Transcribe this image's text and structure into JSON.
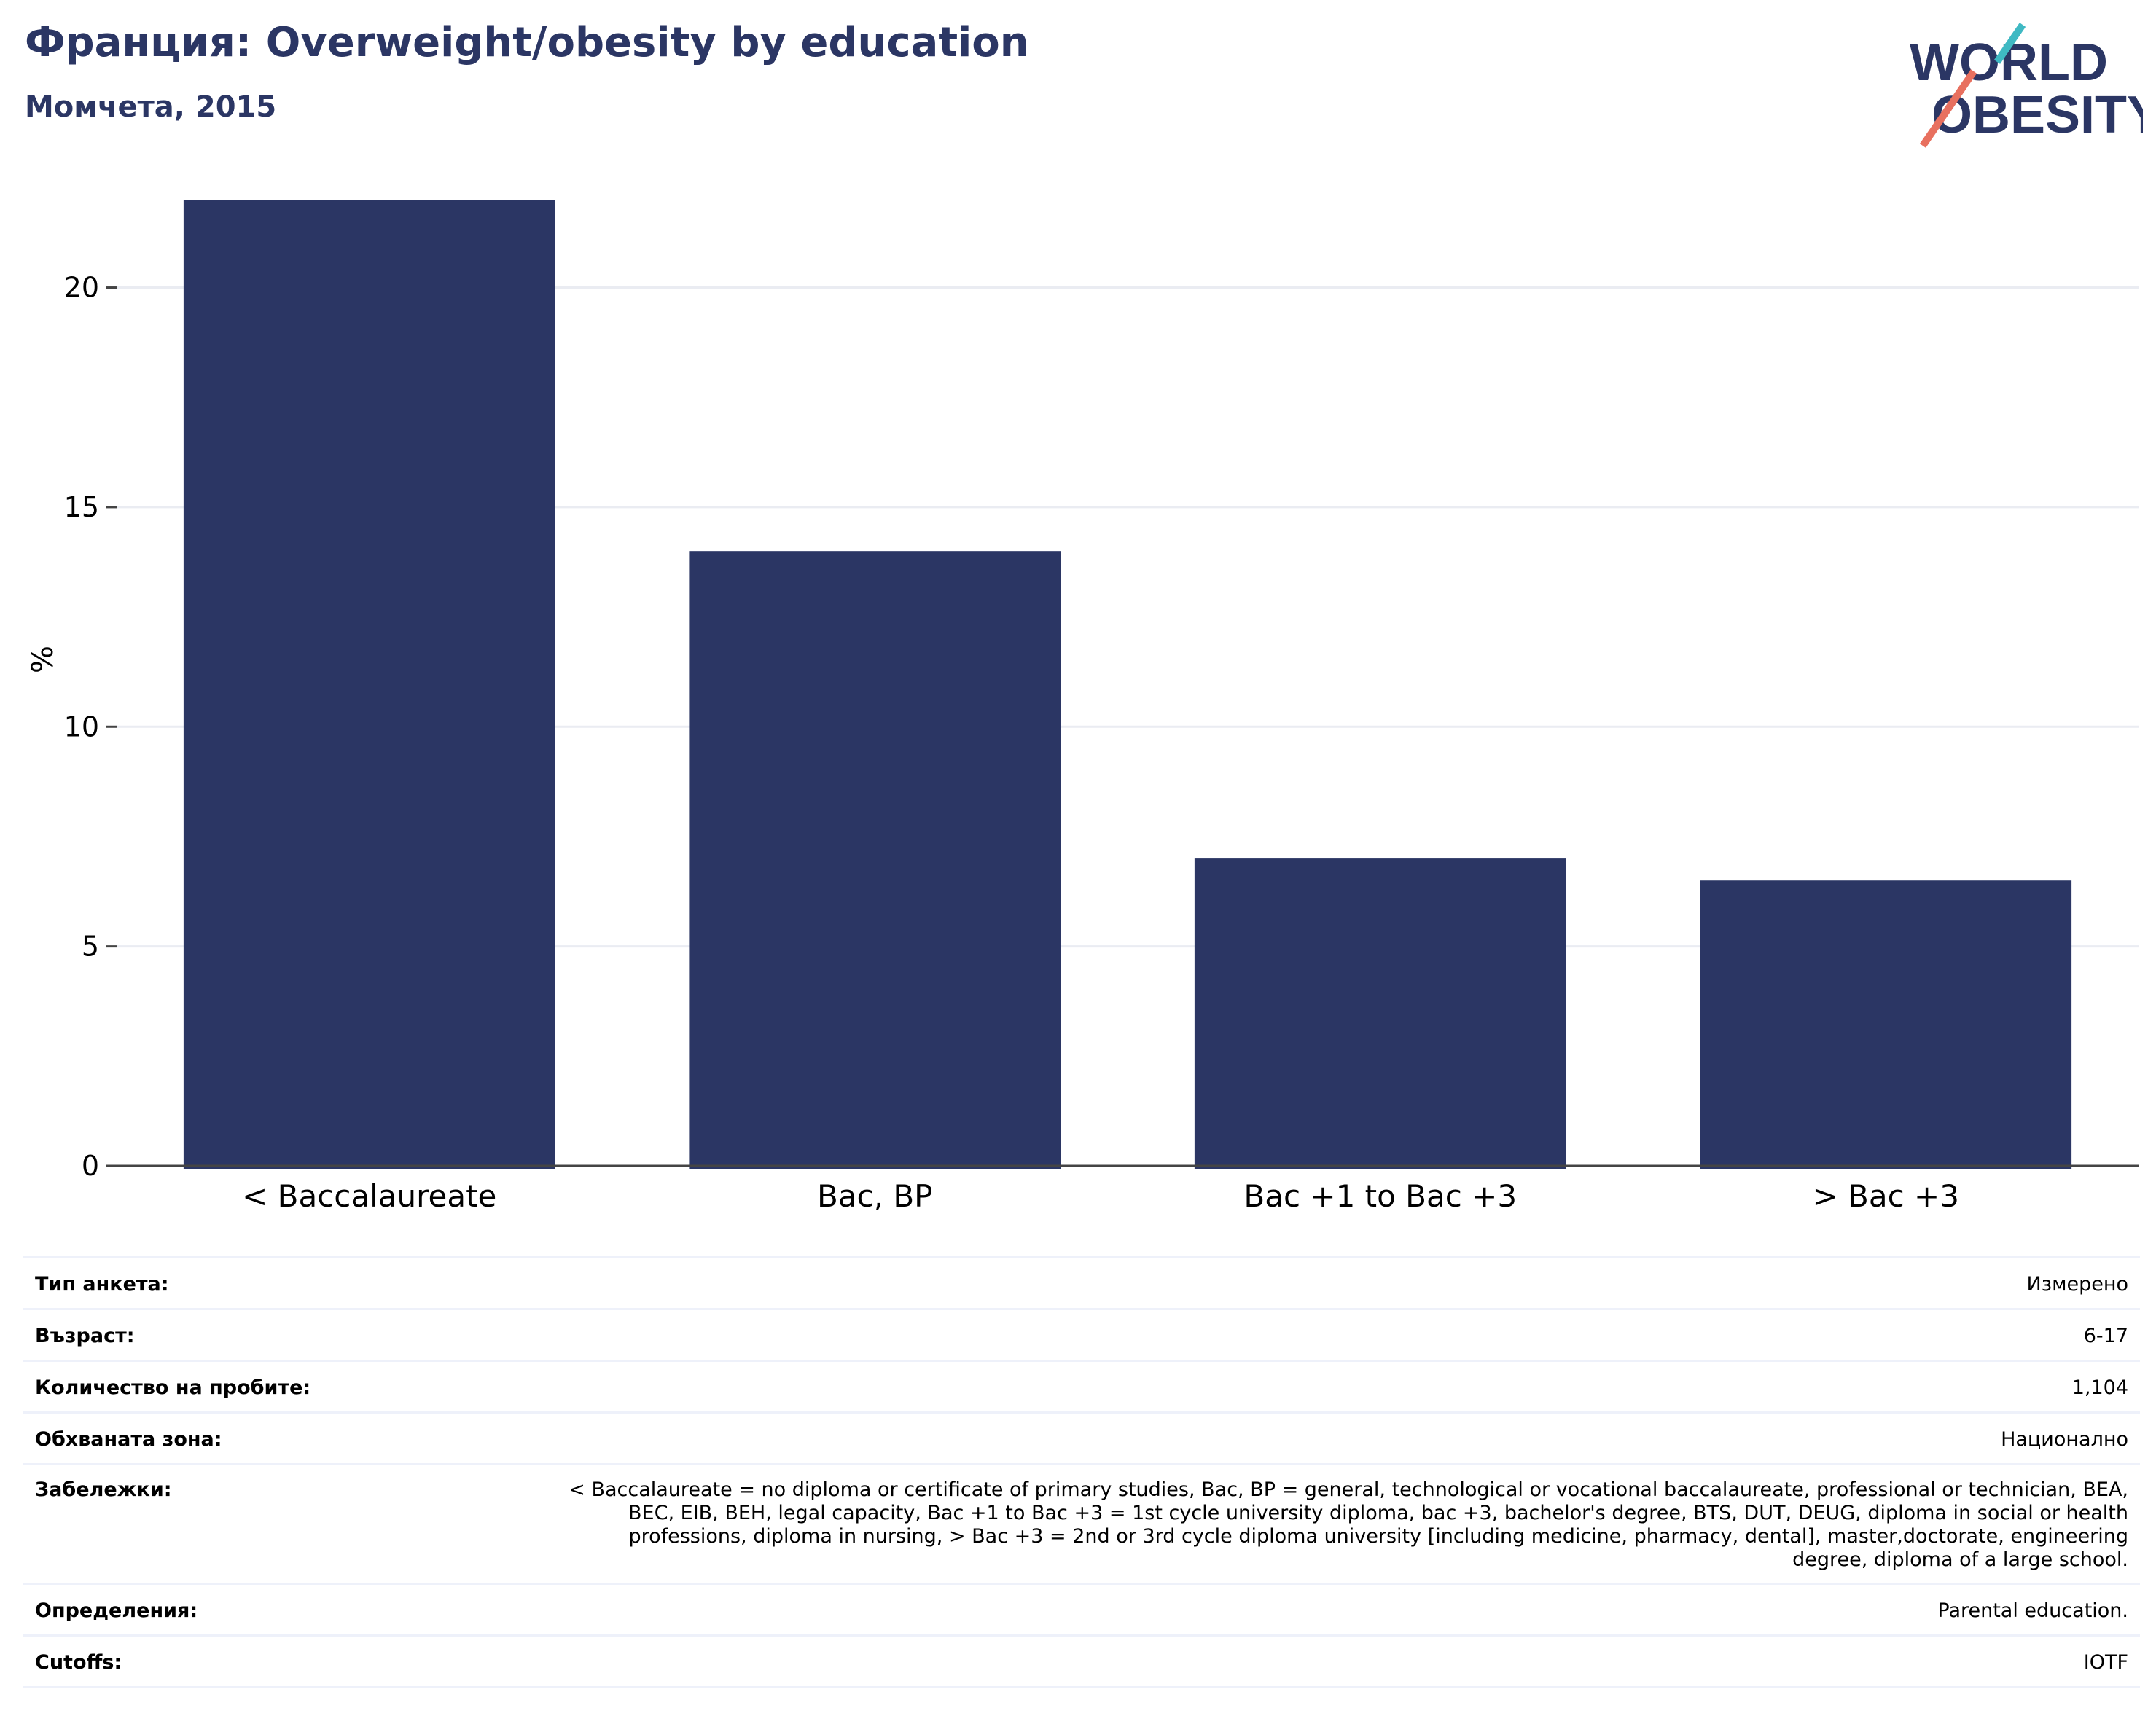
{
  "header": {
    "title": "Франция: Overweight/obesity by education",
    "subtitle": "Момчета, 2015"
  },
  "logo": {
    "line1": "WORLD",
    "line2": "OBESITY"
  },
  "colors": {
    "bar": "#2b3664",
    "title": "#2b3664",
    "grid": "#eaecf2",
    "logo_teal": "#3fb9c3",
    "logo_red": "#e8705f"
  },
  "chart_data": {
    "type": "bar",
    "categories": [
      "< Baccalaureate",
      "Bac, BP",
      "Bac +1 to Bac +3",
      "> Bac +3"
    ],
    "values": [
      22,
      14,
      7,
      6.5
    ],
    "title": "Франция: Overweight/obesity by education",
    "subtitle": "Момчета, 2015",
    "xlabel": "",
    "ylabel": "%",
    "ylim": [
      0,
      22
    ],
    "yticks": [
      0,
      5,
      10,
      15,
      20
    ],
    "grid": true,
    "legend": "none"
  },
  "info": [
    {
      "label": "Тип анкета:",
      "value": "Измерено"
    },
    {
      "label": "Възраст:",
      "value": "6-17"
    },
    {
      "label": "Количество на пробите:",
      "value": "1,104"
    },
    {
      "label": "Обхваната зона:",
      "value": "Национално"
    },
    {
      "label": "Забележки:",
      "value": "< Baccalaureate = no diploma or certificate of primary studies, Bac, BP = general, technological or vocational baccalaureate, professional or technician, BEA, BEC, EIB, BEH, legal capacity, Bac +1 to Bac +3 = 1st cycle university diploma, bac +3, bachelor's degree, BTS, DUT, DEUG, diploma in social or health professions, diploma in nursing, > Bac +3 = 2nd or 3rd cycle diploma university [including medicine, pharmacy, dental], master,doctorate, engineering degree, diploma of a large school."
    },
    {
      "label": "Определения:",
      "value": "Parental education."
    },
    {
      "label": "Cutoffs:",
      "value": "IOTF"
    }
  ]
}
